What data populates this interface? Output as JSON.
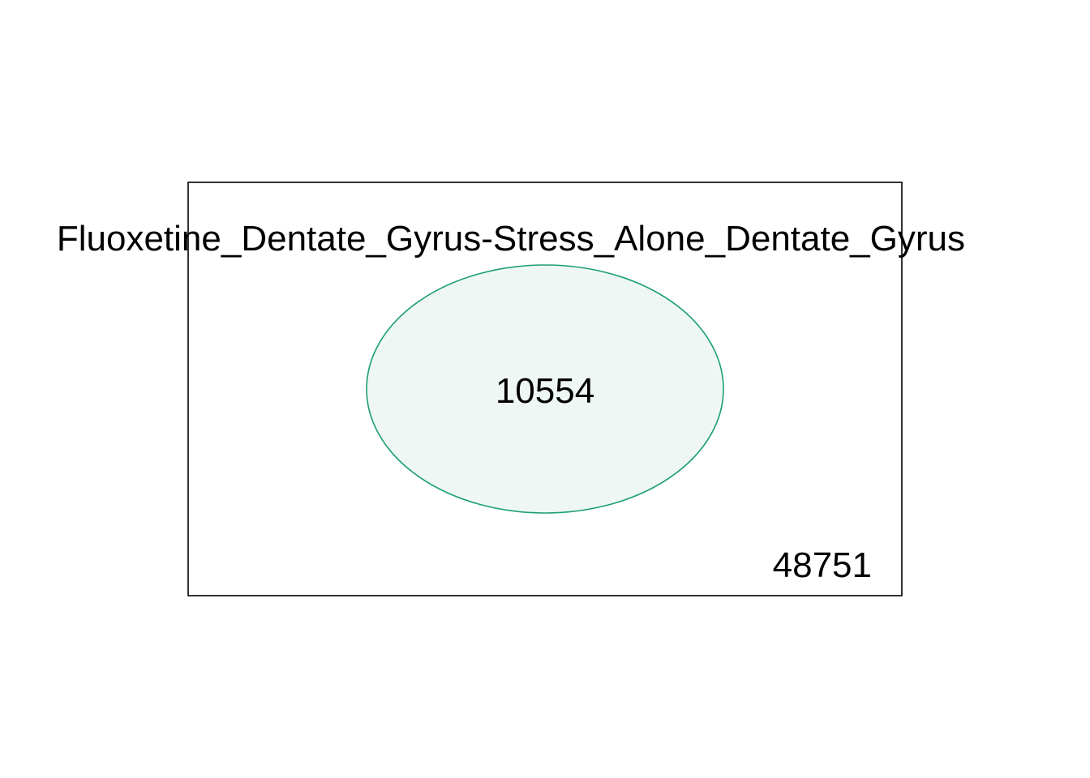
{
  "diagram": {
    "type": "venn",
    "set_label": "Fluoxetine_Dentate_Gyrus-Stress_Alone_Dentate_Gyrus",
    "set_count": "10554",
    "outside_count": "48751",
    "colors": {
      "set_stroke": "#1b9e77",
      "set_fill": "#eef7f3",
      "universe_stroke": "#000000",
      "background": "#ffffff",
      "text": "#000000"
    }
  }
}
